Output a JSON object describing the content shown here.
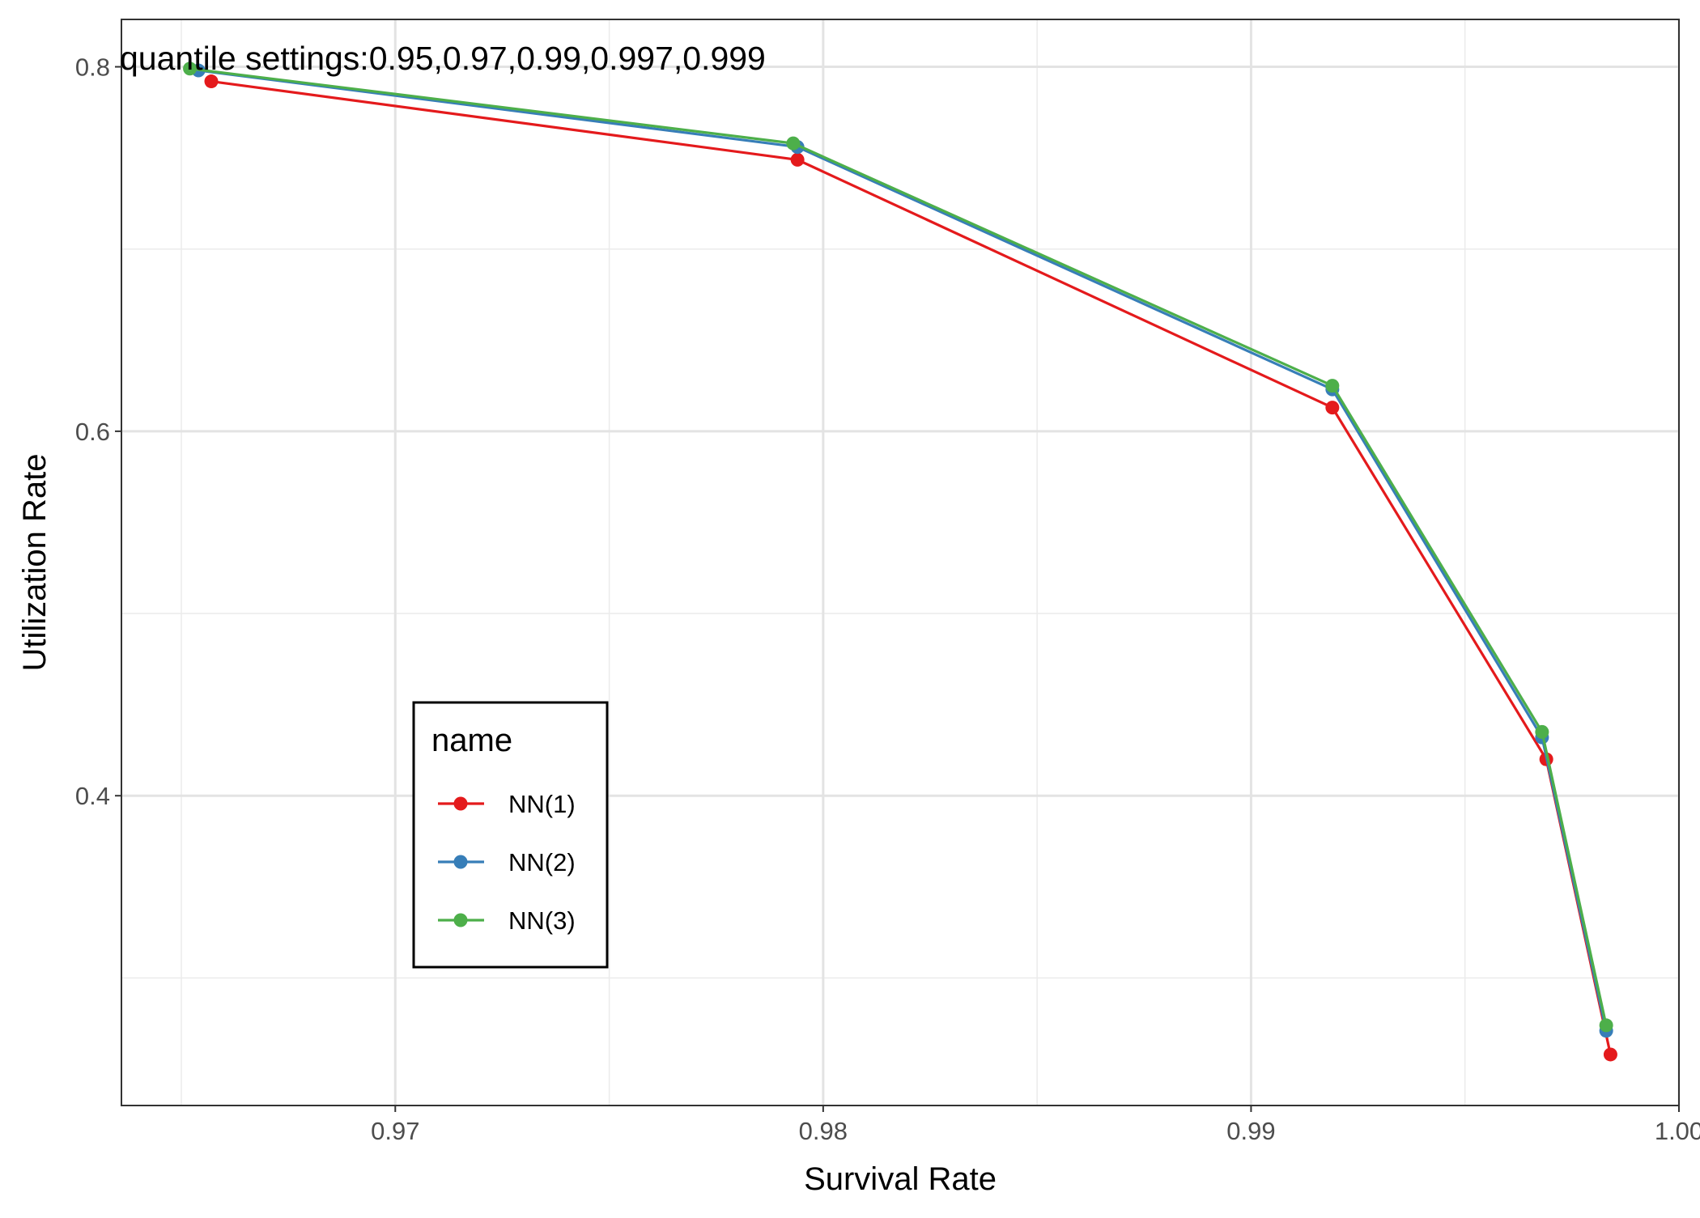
{
  "chart_data": {
    "type": "line",
    "xlabel": "Survival Rate",
    "ylabel": "Utilization Rate",
    "xlim": [
      0.9636,
      1.0
    ],
    "ylim": [
      0.23,
      0.826
    ],
    "x_ticks": [
      0.97,
      0.98,
      0.99,
      1.0
    ],
    "x_tick_labels": [
      "0.97",
      "0.98",
      "0.99",
      "1.00"
    ],
    "y_ticks": [
      0.4,
      0.6,
      0.8
    ],
    "y_tick_labels": [
      "0.4",
      "0.6",
      "0.8"
    ],
    "grid": true,
    "annotation": "quantile settings:0.95,0.97,0.99,0.997,0.999",
    "legend": {
      "title": "name",
      "placement": "inside-bottom-left"
    },
    "series": [
      {
        "name": "NN(1)",
        "color": "#E41A1C",
        "x": [
          0.9657,
          0.9794,
          0.9919,
          0.9969,
          0.9984
        ],
        "y": [
          0.792,
          0.749,
          0.613,
          0.42,
          0.258
        ]
      },
      {
        "name": "NN(2)",
        "color": "#377EB8",
        "x": [
          0.9654,
          0.9794,
          0.9919,
          0.9968,
          0.9983
        ],
        "y": [
          0.798,
          0.756,
          0.623,
          0.432,
          0.271
        ]
      },
      {
        "name": "NN(3)",
        "color": "#4DAF4A",
        "x": [
          0.9652,
          0.9793,
          0.9919,
          0.9968,
          0.9983
        ],
        "y": [
          0.799,
          0.758,
          0.625,
          0.435,
          0.274
        ]
      }
    ]
  }
}
